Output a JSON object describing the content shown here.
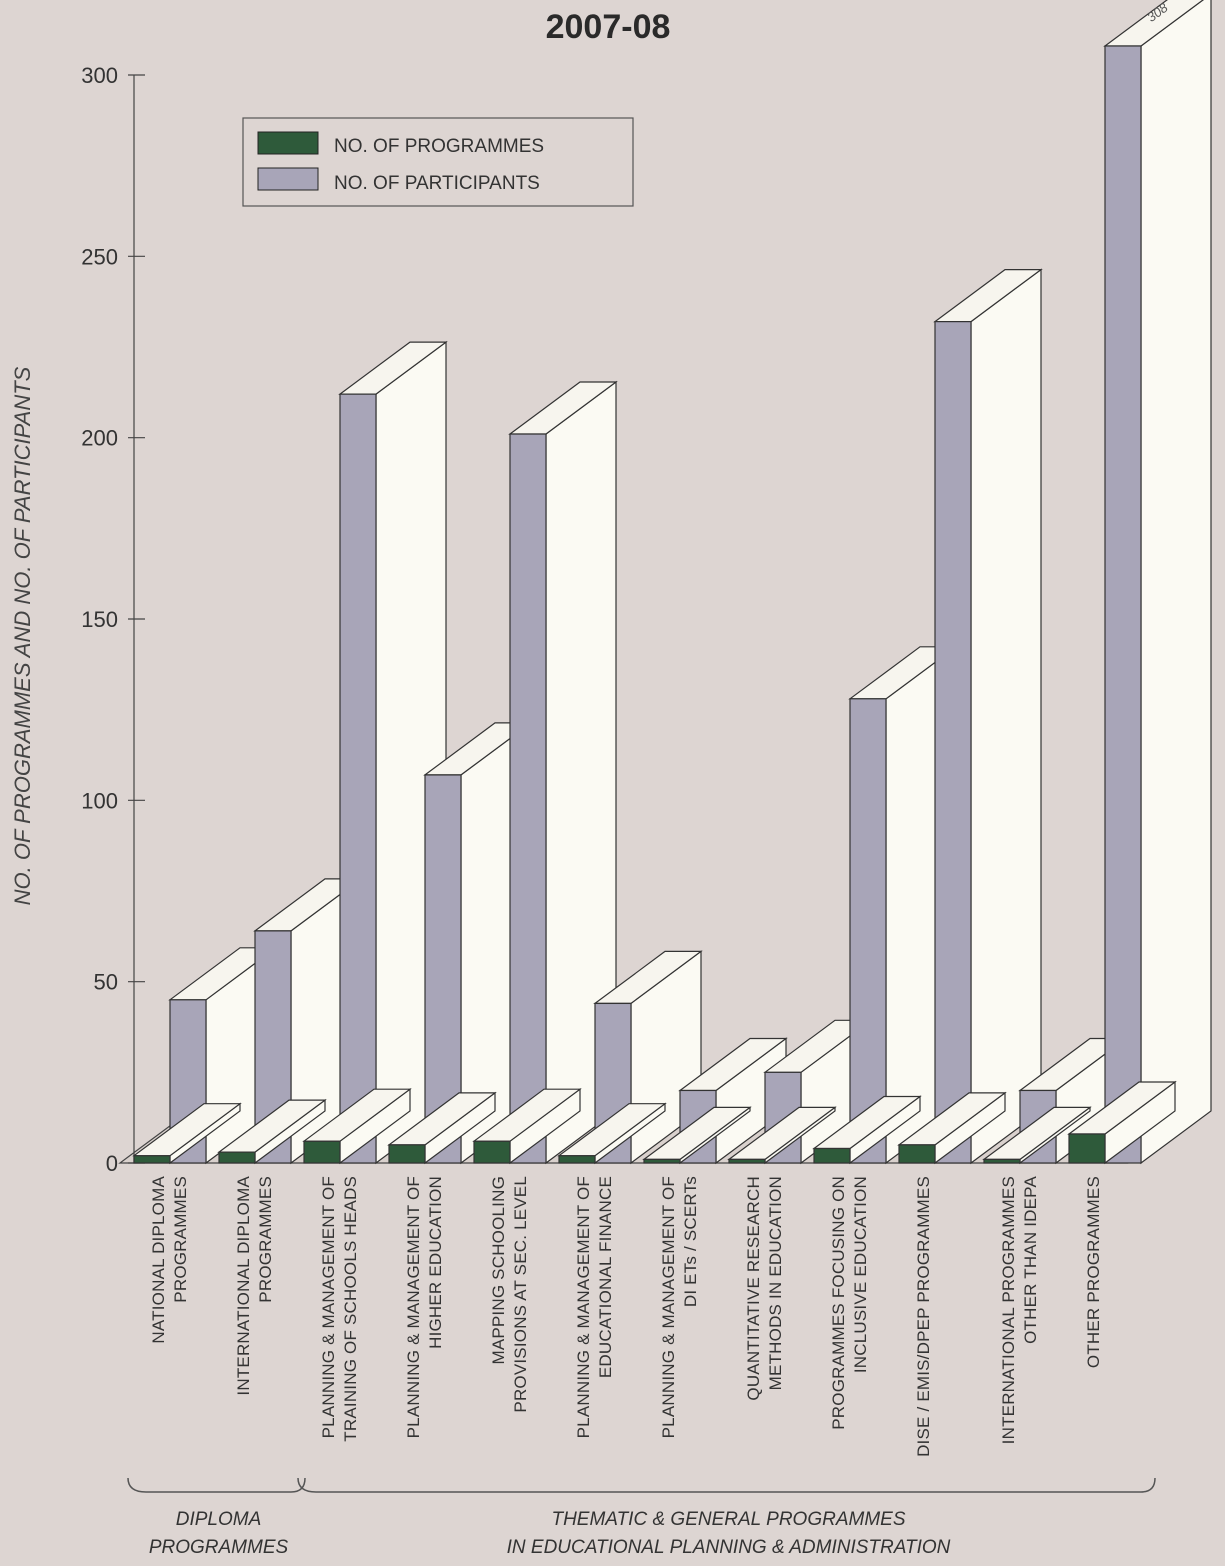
{
  "chart_data": {
    "type": "bar",
    "title": "2007-08",
    "ylabel": "NO. OF PROGRAMMES AND NO. OF PARTICIPANTS",
    "ylim": [
      0,
      300
    ],
    "yticks": [
      0,
      50,
      100,
      150,
      200,
      250,
      300
    ],
    "categories": [
      [
        "NATIONAL DIPLOMA",
        "PROGRAMMES"
      ],
      [
        "INTERNATIONAL DIPLOMA",
        "PROGRAMMES"
      ],
      [
        "PLANNING & MANAGEMENT OF",
        "TRAINING OF SCHOOLS HEADS"
      ],
      [
        "PLANNING & MANAGEMENT OF",
        "HIGHER EDUCATION"
      ],
      [
        "MAPPING SCHOOLING",
        "PROVISIONS AT SEC.  LEVEL"
      ],
      [
        "PLANNING & MANAGEMENT OF",
        "EDUCATIONAL FINANCE"
      ],
      [
        "PLANNING & MANAGEMENT OF",
        "DI ETs / SCERTs"
      ],
      [
        "QUANTITATIVE RESEARCH",
        "METHODS IN EDUCATION"
      ],
      [
        "PROGRAMMES FOCUSING ON",
        "INCLUSIVE EDUCATION"
      ],
      [
        "DISE / EMIS/DPEP PROGRAMMES"
      ],
      [
        "INTERNATIONAL PROGRAMMES",
        "OTHER THAN IDEPA"
      ],
      [
        "OTHER PROGRAMMES"
      ]
    ],
    "series": [
      {
        "name": "NO. OF PROGRAMMES",
        "color": "#2e5a3a",
        "values": [
          2,
          3,
          6,
          5,
          6,
          2,
          1,
          1,
          4,
          5,
          1,
          8
        ]
      },
      {
        "name": "NO. OF PARTICIPANTS",
        "color": "#a8a5b8",
        "values": [
          45,
          64,
          212,
          107,
          201,
          44,
          20,
          25,
          128,
          232,
          20,
          308
        ]
      }
    ],
    "data_labels": [
      {
        "category_index": 11,
        "series": "NO. OF PARTICIPANTS",
        "text": "308"
      }
    ],
    "groups": [
      {
        "label": [
          "DIPLOMA",
          "PROGRAMMES"
        ],
        "from": 0,
        "to": 1
      },
      {
        "label": [
          "THEMATIC & GENERAL PROGRAMMES",
          "IN EDUCATIONAL PLANNING & ADMINISTRATION"
        ],
        "from": 2,
        "to": 11
      }
    ],
    "legend_position": "top-left",
    "grid": false
  }
}
